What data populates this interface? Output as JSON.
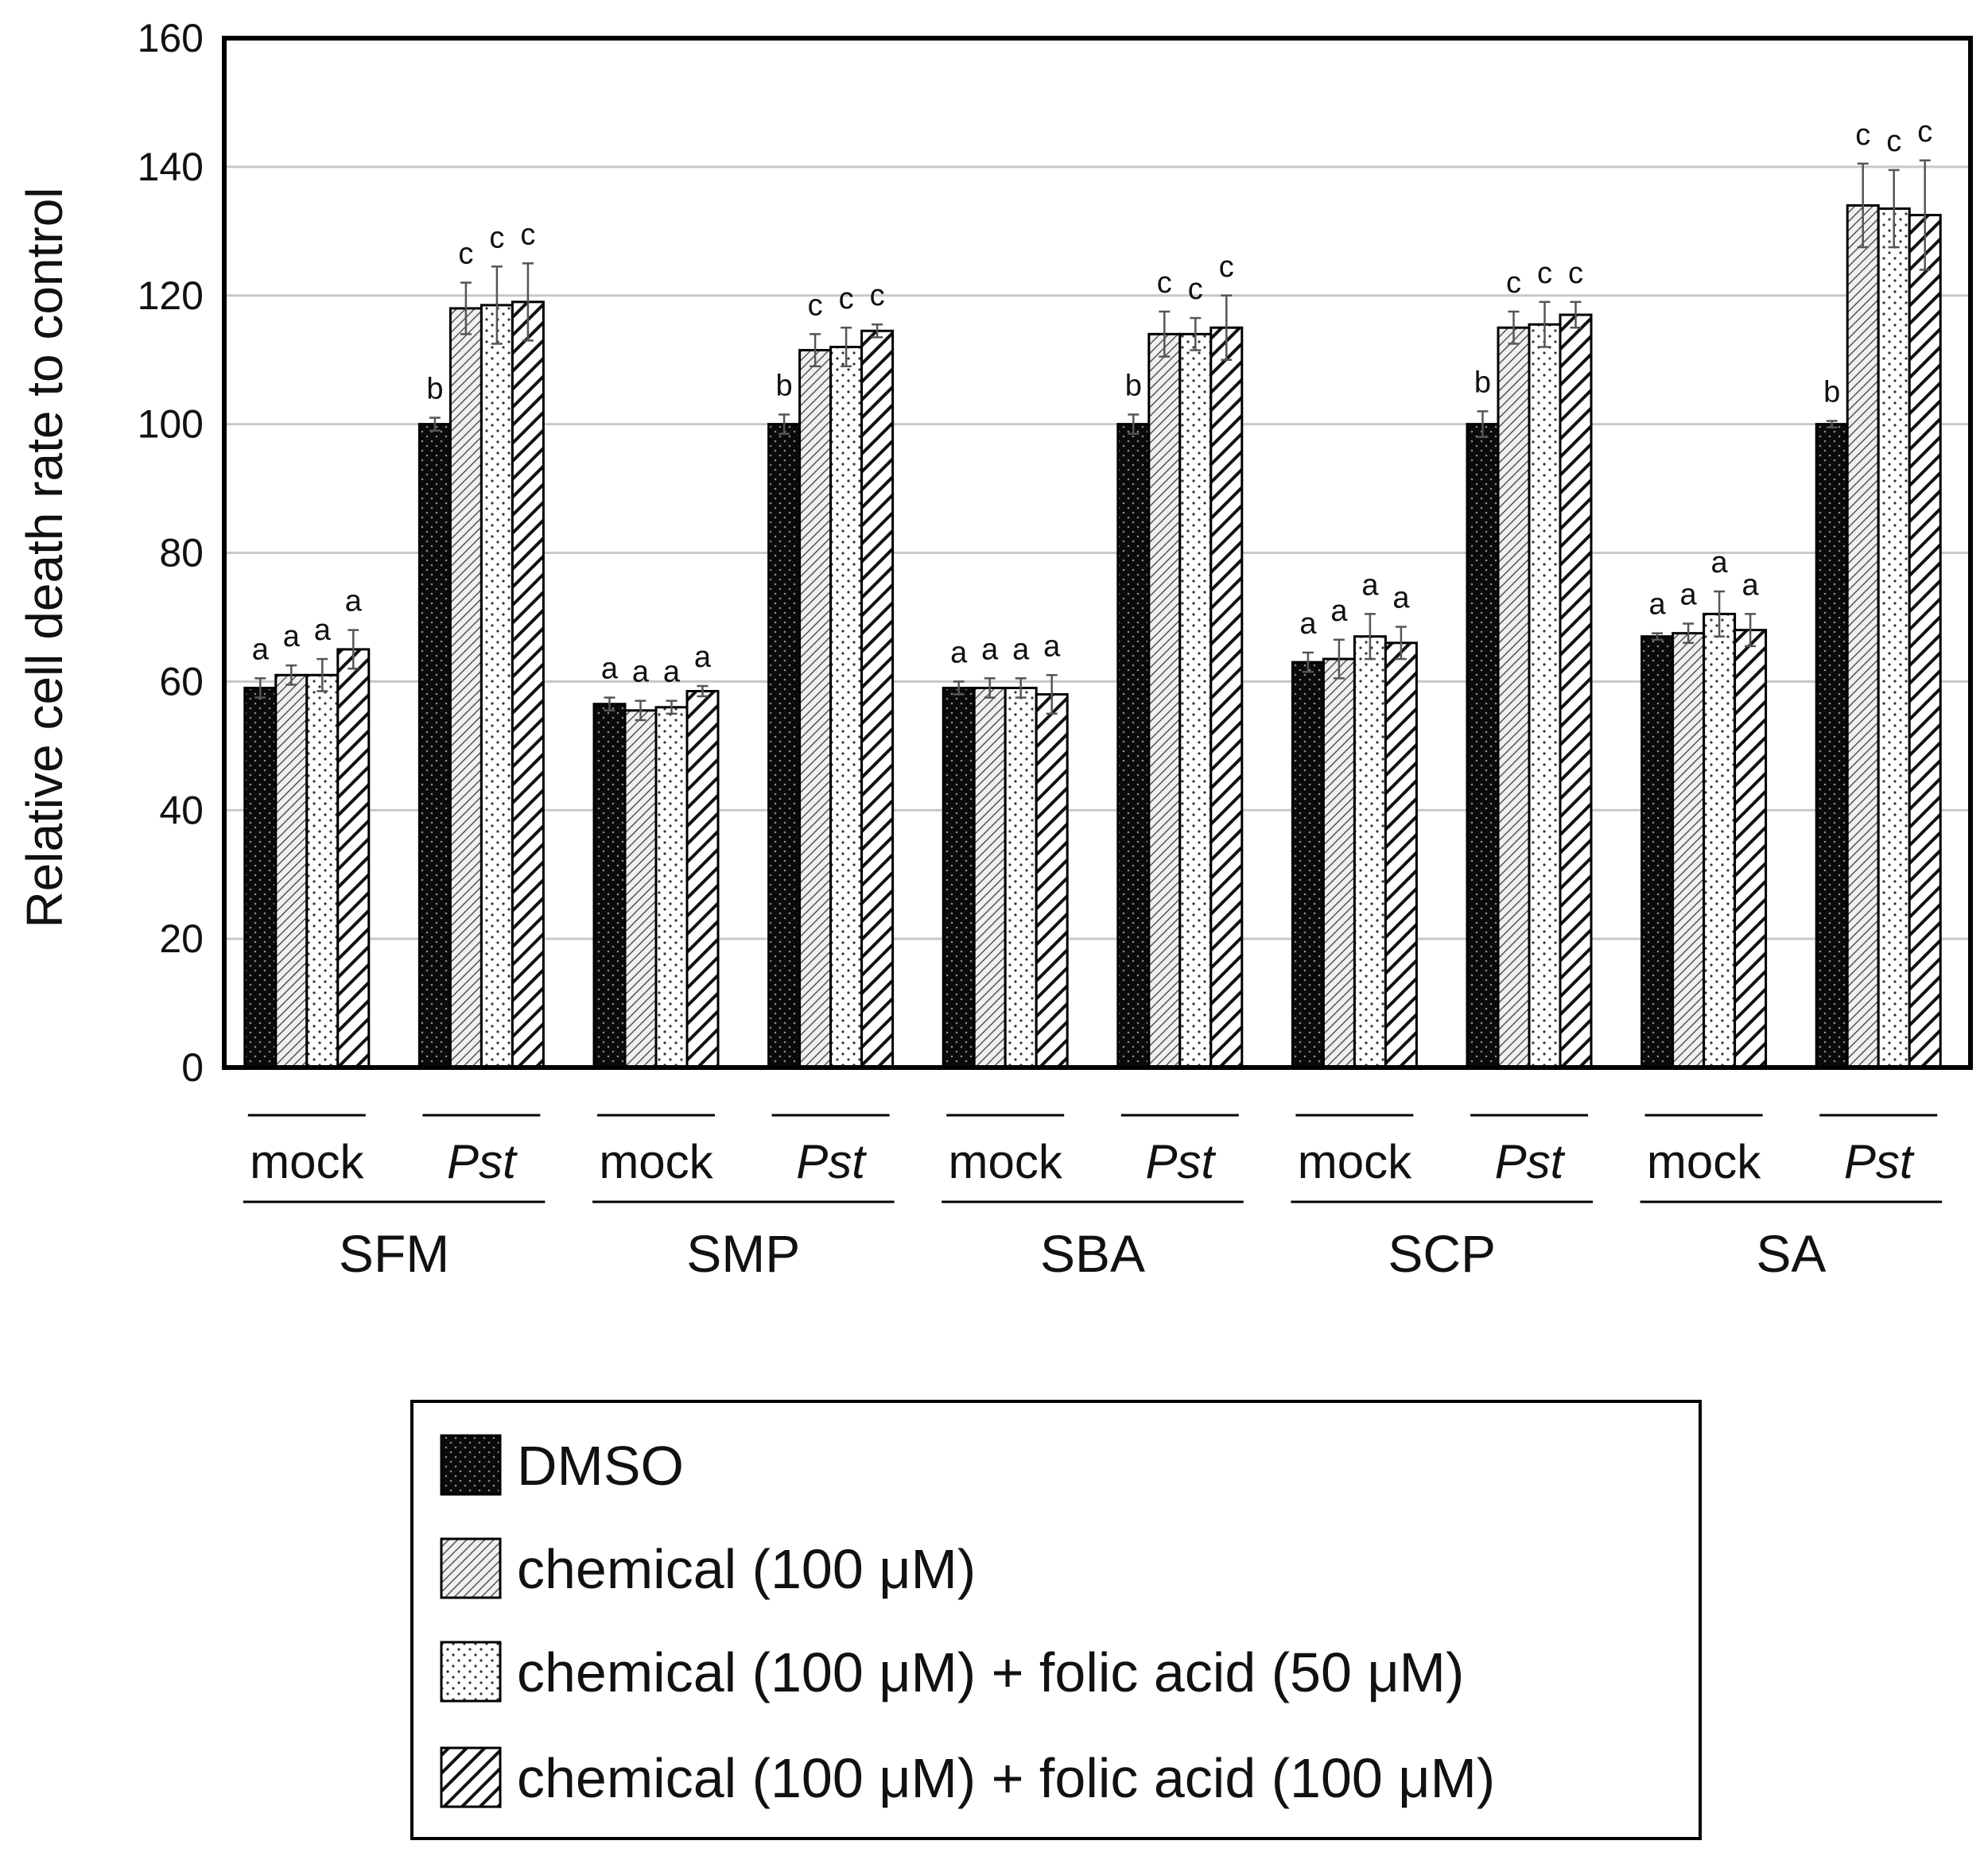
{
  "chart_data": {
    "type": "bar",
    "ylabel": "Relative cell death rate to control",
    "ylim": [
      0,
      160
    ],
    "yticks": [
      0,
      20,
      40,
      60,
      80,
      100,
      120,
      140,
      160
    ],
    "grid": true,
    "groups": [
      "SFM",
      "SMP",
      "SBA",
      "SCP",
      "SA"
    ],
    "subgroups": [
      "mock",
      "Pst"
    ],
    "series": [
      {
        "name": "DMSO",
        "pattern": "dark-dotted",
        "values": [
          59,
          100,
          56.5,
          100,
          59,
          100,
          63,
          100,
          67,
          100
        ],
        "errors": [
          1.5,
          1.0,
          1.0,
          1.5,
          1.0,
          1.5,
          1.5,
          2.0,
          0.5,
          0.5
        ],
        "labels": [
          "a",
          "b",
          "a",
          "b",
          "a",
          "b",
          "a",
          "b",
          "a",
          "b"
        ]
      },
      {
        "name": "chemical (100 μM)",
        "pattern": "fine-diagonal",
        "values": [
          61,
          118,
          55.5,
          111.5,
          59,
          114,
          63.5,
          115,
          67.5,
          134
        ],
        "errors": [
          1.5,
          4.0,
          1.5,
          2.5,
          1.5,
          3.5,
          3.0,
          2.5,
          1.5,
          6.5
        ],
        "labels": [
          "a",
          "c",
          "a",
          "c",
          "a",
          "c",
          "a",
          "c",
          "a",
          "c"
        ]
      },
      {
        "name": "chemical (100 μM) + folic acid (50 μM)",
        "pattern": "light-dotted",
        "values": [
          61,
          118.5,
          56,
          112,
          59,
          114,
          67,
          115.5,
          70.5,
          133.5
        ],
        "errors": [
          2.5,
          6.0,
          1.0,
          3.0,
          1.5,
          2.5,
          3.5,
          3.5,
          3.5,
          6.0
        ],
        "labels": [
          "a",
          "c",
          "a",
          "c",
          "a",
          "c",
          "a",
          "c",
          "a",
          "c"
        ]
      },
      {
        "name": "chemical (100 μM) + folic acid (100 μM)",
        "pattern": "bold-diagonal",
        "values": [
          65,
          119,
          58.5,
          114.5,
          58,
          115,
          66,
          117,
          68,
          132.5
        ],
        "errors": [
          3.0,
          6.0,
          0.8,
          1.0,
          3.0,
          5.0,
          2.5,
          2.0,
          2.5,
          8.5
        ],
        "labels": [
          "a",
          "c",
          "a",
          "c",
          "a",
          "c",
          "a",
          "c",
          "a",
          "c"
        ]
      }
    ],
    "legend_position": "bottom-center"
  }
}
